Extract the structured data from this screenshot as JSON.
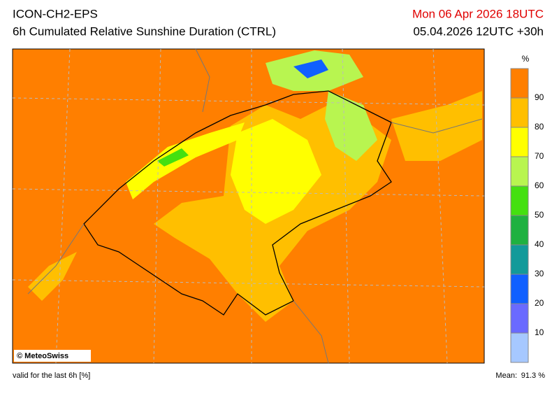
{
  "header": {
    "model": "ICON-CH2-EPS",
    "product": "6h Cumulated Relative Sunshine Duration (CTRL)",
    "valid_time": "Mon 06 Apr 2026 18UTC",
    "run": "05.04.2026 12UTC +30h"
  },
  "colorbar": {
    "unit": "%",
    "ticks": [
      10,
      20,
      30,
      40,
      50,
      60,
      70,
      80,
      90
    ],
    "colors": [
      "#a6c8ff",
      "#6a6aff",
      "#1060ff",
      "#129a9a",
      "#1fb140",
      "#44e010",
      "#b8f550",
      "#ffff00",
      "#ffbf00",
      "#ff7f00"
    ]
  },
  "copyright": "© MeteoSwiss",
  "footer": {
    "validity": "valid for the last 6h [%]",
    "mean_label": "Mean:",
    "mean_value": "91.3 %"
  }
}
